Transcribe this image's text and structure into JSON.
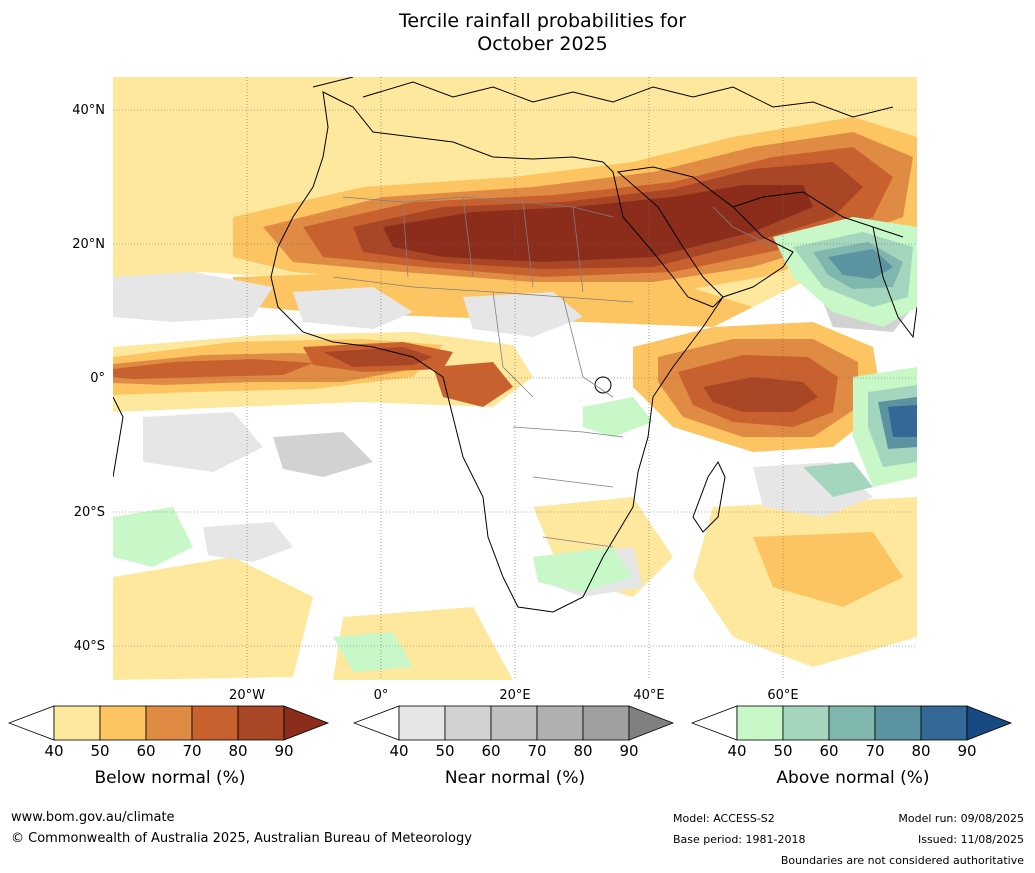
{
  "title_line1": "Tercile rainfall probabilities for",
  "title_line2": "October 2025",
  "lat_labels": [
    "40°N",
    "20°N",
    "0°",
    "20°S",
    "40°S"
  ],
  "lon_labels": [
    "20°W",
    "0°",
    "20°E",
    "40°E",
    "60°E"
  ],
  "colorbars": [
    {
      "title": "Below normal (%)",
      "ticks": [
        "40",
        "50",
        "60",
        "70",
        "80",
        "90"
      ],
      "colors": [
        "#ffffff",
        "#fee89e",
        "#fdc562",
        "#e08b44",
        "#c9612f",
        "#a84626",
        "#8b2d1a"
      ]
    },
    {
      "title": "Near normal (%)",
      "ticks": [
        "40",
        "50",
        "60",
        "70",
        "80",
        "90"
      ],
      "colors": [
        "#ffffff",
        "#e6e6e6",
        "#d2d2d2",
        "#c0c0c0",
        "#b0b0b0",
        "#a0a0a0",
        "#808080"
      ]
    },
    {
      "title": "Above normal (%)",
      "ticks": [
        "40",
        "50",
        "60",
        "70",
        "80",
        "90"
      ],
      "colors": [
        "#ffffff",
        "#c8f8c8",
        "#a3d6bc",
        "#7fb6ad",
        "#5b93a0",
        "#336897",
        "#174a83"
      ]
    }
  ],
  "footer": {
    "website": "www.bom.gov.au/climate",
    "copyright": "© Commonwealth of Australia 2025, Australian Bureau of Meteorology",
    "model": "Model: ACCESS-S2",
    "base_period": "Base period: 1981-2018",
    "model_run": "Model run: 09/08/2025",
    "issued": "Issued: 11/08/2025",
    "disclaimer": "Boundaries are not considered authoritative"
  }
}
